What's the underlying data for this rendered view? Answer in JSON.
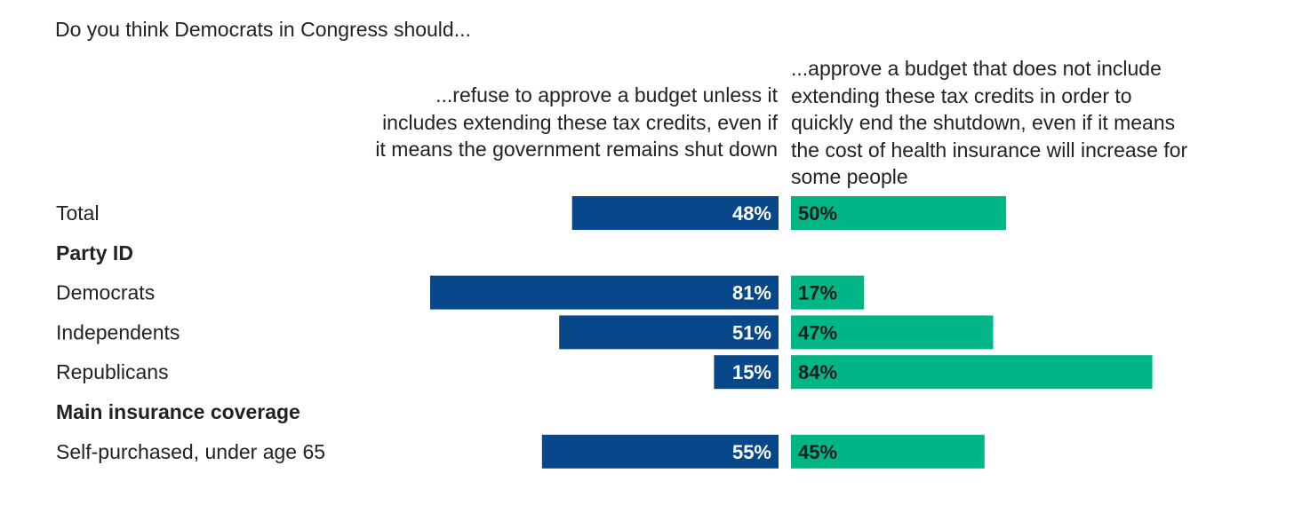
{
  "chart_data": {
    "type": "bar",
    "title": "Do you think Democrats in Congress should...",
    "series": [
      {
        "name": "...refuse to approve a budget unless it includes extending these tax credits, even if it means the government remains shut down",
        "name_lines": [
          "...refuse to approve a budget unless it",
          "includes extending these tax credits, even if",
          "it means the government remains shut down"
        ],
        "color": "#08488a"
      },
      {
        "name": "...approve a budget that does not include extending these tax credits in order to quickly end the shutdown, even if it means the cost of health insurance will increase for some people",
        "name_lines": [
          "...approve a budget that does not include",
          "extending these tax credits in order to",
          "quickly end the shutdown, even if it means",
          "the cost of health insurance will increase for",
          "some people"
        ],
        "color": "#00b586"
      }
    ],
    "rows": [
      {
        "kind": "data",
        "label": "Total",
        "left": 48,
        "right": 50,
        "left_label": "48%",
        "right_label": "50%"
      },
      {
        "kind": "group",
        "label": "Party ID"
      },
      {
        "kind": "data",
        "label": "Democrats",
        "left": 81,
        "right": 17,
        "left_label": "81%",
        "right_label": "17%"
      },
      {
        "kind": "data",
        "label": "Independents",
        "left": 51,
        "right": 47,
        "left_label": "51%",
        "right_label": "47%"
      },
      {
        "kind": "data",
        "label": "Republicans",
        "left": 15,
        "right": 84,
        "left_label": "15%",
        "right_label": "84%"
      },
      {
        "kind": "group",
        "label": "Main insurance coverage"
      },
      {
        "kind": "data",
        "label": "Self-purchased, under age 65",
        "left": 55,
        "right": 45,
        "left_label": "55%",
        "right_label": "45%"
      }
    ],
    "xlim": [
      0,
      100
    ]
  }
}
